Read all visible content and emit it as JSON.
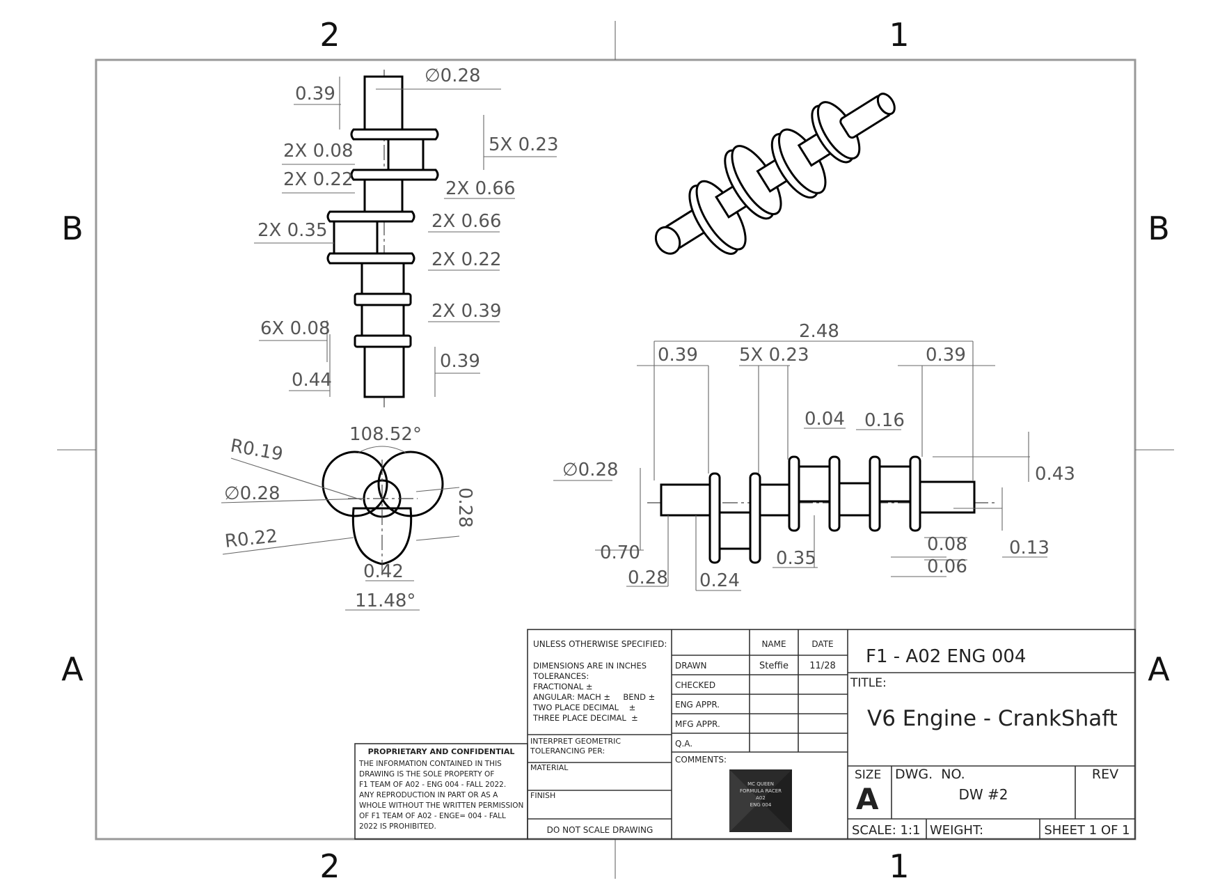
{
  "zones": {
    "top": [
      "2",
      "1"
    ],
    "bottom": [
      "2",
      "1"
    ],
    "left": [
      "B",
      "A"
    ],
    "right": [
      "B",
      "A"
    ]
  },
  "front_view": {
    "dims": [
      "0.39",
      "∅0.28",
      "2X 0.08",
      "5X 0.23",
      "2X 0.22",
      "2X 0.66",
      "2X 0.35",
      "2X 0.66",
      "2X 0.22",
      "2X 0.39",
      "6X 0.08",
      "0.39",
      "0.44"
    ]
  },
  "end_view": {
    "dims": [
      "108.52°",
      "R0.19",
      "∅0.28",
      "0.28",
      "R0.22",
      "0.42",
      "11.48°"
    ]
  },
  "side_view": {
    "dims": [
      "2.48",
      "0.39",
      "5X 0.23",
      "0.39",
      "0.04",
      "0.16",
      "∅0.28",
      "0.43",
      "0.70",
      "0.35",
      "0.08",
      "0.13",
      "0.06",
      "0.28",
      "0.24"
    ]
  },
  "title_block": {
    "unless": "UNLESS OTHERWISE SPECIFIED:",
    "dimensions_lines": [
      "DIMENSIONS ARE IN INCHES",
      "TOLERANCES:",
      "FRACTIONAL ±",
      "ANGULAR: MACH ±     BEND ±",
      "TWO PLACE DECIMAL    ±",
      "THREE PLACE DECIMAL  ±"
    ],
    "interpret_lines": [
      "INTERPRET GEOMETRIC",
      "TOLERANCING PER:"
    ],
    "material": "MATERIAL",
    "finish": "FINISH",
    "do_not_scale": "DO NOT SCALE DRAWING",
    "name_header": "NAME",
    "date_header": "DATE",
    "rows": [
      {
        "label": "DRAWN",
        "name": "Steffie",
        "date": "11/28"
      },
      {
        "label": "CHECKED",
        "name": "",
        "date": ""
      },
      {
        "label": "ENG APPR.",
        "name": "",
        "date": ""
      },
      {
        "label": "MFG APPR.",
        "name": "",
        "date": ""
      },
      {
        "label": "Q.A.",
        "name": "",
        "date": ""
      }
    ],
    "comments": "COMMENTS:",
    "logo_lines": [
      "MC QUEEN",
      "FORMULA RACER",
      "A02",
      "ENG 004"
    ],
    "company": "F1 - A02 ENG 004",
    "title_label": "TITLE:",
    "title": "V6 Engine - CrankShaft",
    "size_label": "SIZE",
    "size": "A",
    "dwg_no_label": "DWG.  NO.",
    "dwg_no": "DW #2",
    "rev_label": "REV",
    "scale": "SCALE: 1:1",
    "weight": "WEIGHT:",
    "sheet": "SHEET 1 OF 1"
  },
  "proprietary": {
    "heading": "PROPRIETARY AND CONFIDENTIAL",
    "lines": [
      "THE INFORMATION CONTAINED IN THIS",
      "DRAWING IS THE SOLE PROPERTY OF",
      "F1 TEAM OF A02 - ENG 004 - FALL 2022.",
      "ANY REPRODUCTION IN PART OR AS A",
      "WHOLE WITHOUT THE WRITTEN PERMISSION",
      "OF F1 TEAM OF A02 - ENGE= 004 - FALL",
      "2022 IS PROHIBITED."
    ]
  }
}
